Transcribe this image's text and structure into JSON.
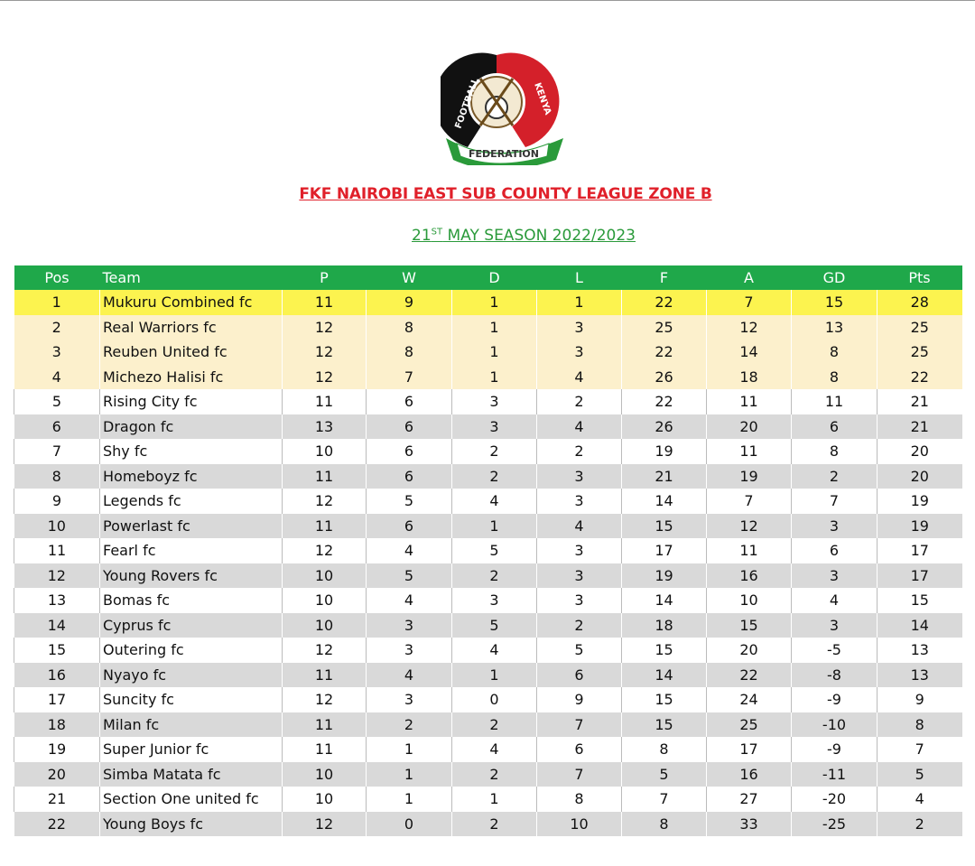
{
  "logo": {
    "top": "FOOTBALL",
    "right": "KENYA",
    "ribbon": "FEDERATION"
  },
  "header": {
    "title": "FKF NAIROBI EAST SUB COUNTY LEAGUE ZONE B",
    "subtitle": {
      "date": "21",
      "suffix": "ST",
      "rest": " MAY SEASON 2022/2023"
    }
  },
  "table": {
    "columns": [
      "Pos",
      "Team",
      "P",
      "W",
      "D",
      "L",
      "F",
      "A",
      "GD",
      "Pts"
    ],
    "rows": [
      [
        1,
        "Mukuru Combined fc",
        11,
        9,
        1,
        1,
        22,
        7,
        15,
        28
      ],
      [
        2,
        "Real Warriors fc",
        12,
        8,
        1,
        3,
        25,
        12,
        13,
        25
      ],
      [
        3,
        "Reuben United fc",
        12,
        8,
        1,
        3,
        22,
        14,
        8,
        25
      ],
      [
        4,
        "Michezo Halisi fc",
        12,
        7,
        1,
        4,
        26,
        18,
        8,
        22
      ],
      [
        5,
        "Rising City fc",
        11,
        6,
        3,
        2,
        22,
        11,
        11,
        21
      ],
      [
        6,
        "Dragon fc",
        13,
        6,
        3,
        4,
        26,
        20,
        6,
        21
      ],
      [
        7,
        "Shy fc",
        10,
        6,
        2,
        2,
        19,
        11,
        8,
        20
      ],
      [
        8,
        "Homeboyz fc",
        11,
        6,
        2,
        3,
        21,
        19,
        2,
        20
      ],
      [
        9,
        "Legends fc",
        12,
        5,
        4,
        3,
        14,
        7,
        7,
        19
      ],
      [
        10,
        "Powerlast fc",
        11,
        6,
        1,
        4,
        15,
        12,
        3,
        19
      ],
      [
        11,
        "Fearl fc",
        12,
        4,
        5,
        3,
        17,
        11,
        6,
        17
      ],
      [
        12,
        "Young Rovers fc",
        10,
        5,
        2,
        3,
        19,
        16,
        3,
        17
      ],
      [
        13,
        "Bomas fc",
        10,
        4,
        3,
        3,
        14,
        10,
        4,
        15
      ],
      [
        14,
        "Cyprus fc",
        10,
        3,
        5,
        2,
        18,
        15,
        3,
        14
      ],
      [
        15,
        "Outering fc",
        12,
        3,
        4,
        5,
        15,
        20,
        -5,
        13
      ],
      [
        16,
        "Nyayo fc",
        11,
        4,
        1,
        6,
        14,
        22,
        -8,
        13
      ],
      [
        17,
        "Suncity fc",
        12,
        3,
        0,
        9,
        15,
        24,
        -9,
        9
      ],
      [
        18,
        "Milan fc",
        11,
        2,
        2,
        7,
        15,
        25,
        -10,
        8
      ],
      [
        19,
        "Super Junior fc",
        11,
        1,
        4,
        6,
        8,
        17,
        -9,
        7
      ],
      [
        20,
        "Simba Matata fc",
        10,
        1,
        2,
        7,
        5,
        16,
        -11,
        5
      ],
      [
        21,
        "Section One united fc",
        10,
        1,
        1,
        8,
        7,
        27,
        -20,
        4
      ],
      [
        22,
        "Young Boys fc",
        12,
        0,
        2,
        10,
        8,
        33,
        -25,
        2
      ]
    ]
  }
}
